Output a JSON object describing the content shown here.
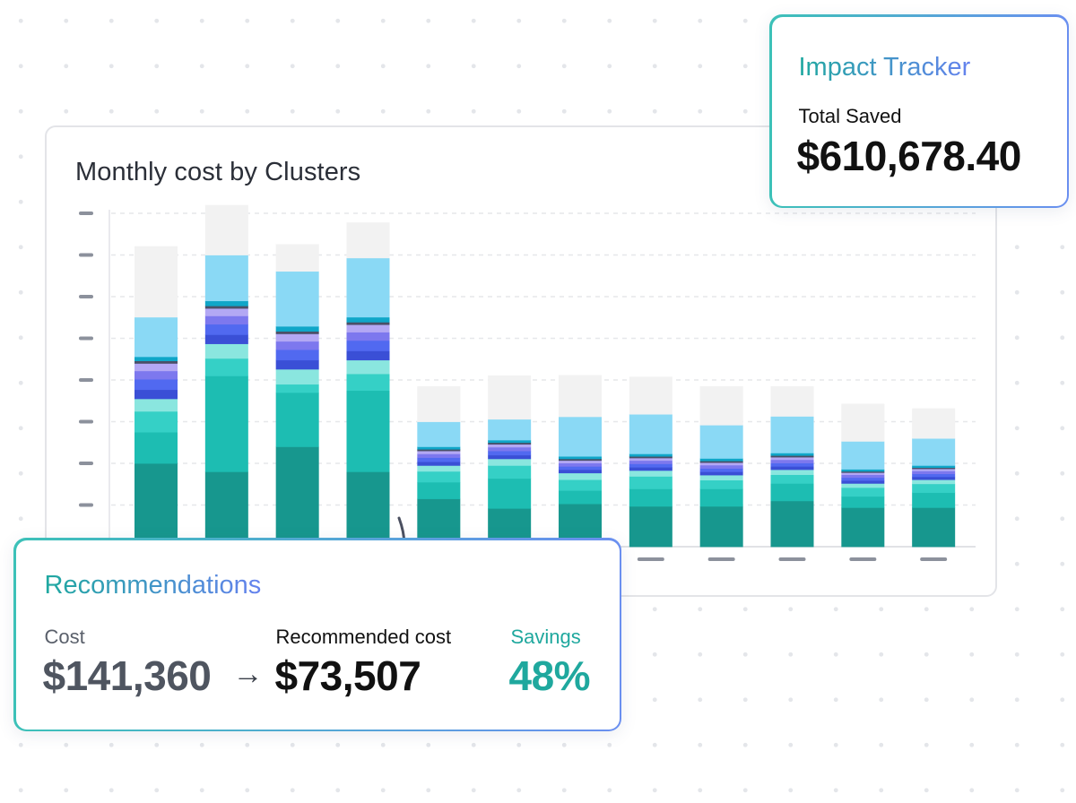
{
  "chart_card": {
    "title": "Monthly cost by Clusters"
  },
  "impact_tracker": {
    "title": "Impact Tracker",
    "label": "Total Saved",
    "value": "$610,678.40"
  },
  "recommendations": {
    "title": "Recommendations",
    "cost_label": "Cost",
    "cost_value": "$141,360",
    "arrow": "→",
    "recommended_label": "Recommended cost",
    "recommended_value": "$73,507",
    "savings_label": "Savings",
    "savings_value": "48%"
  },
  "colors": {
    "teal_dark": "#17978e",
    "teal": "#1dbdb2",
    "teal_light": "#35d0c6",
    "teal_pale": "#8ae6df",
    "blue_dark": "#3a4fd6",
    "blue": "#5169f0",
    "violet": "#7d78ee",
    "lavender": "#b3a8f4",
    "sky": "#8ad9f5",
    "grey": "#f2f2f2",
    "accent_gradient_start": "#3cc1b8",
    "accent_gradient_end": "#6a8ff0"
  },
  "chart_data": {
    "type": "bar",
    "stacked": true,
    "title": "Monthly cost by Clusters",
    "xlabel": "",
    "ylabel": "",
    "grid": true,
    "ylim": [
      0,
      8
    ],
    "categories": [
      "",
      "",
      "",
      "",
      "",
      "",
      "",
      "",
      "",
      "",
      "",
      ""
    ],
    "series": [
      {
        "color": "#17978e",
        "values": [
          2.0,
          1.8,
          2.4,
          1.8,
          1.15,
          0.92,
          1.03,
          0.97,
          0.97,
          1.1,
          0.94,
          0.94
        ]
      },
      {
        "color": "#1dbdb2",
        "values": [
          0.75,
          2.3,
          1.3,
          1.95,
          0.4,
          0.72,
          0.32,
          0.42,
          0.42,
          0.42,
          0.27,
          0.36
        ]
      },
      {
        "color": "#35d0c6",
        "values": [
          0.5,
          0.42,
          0.2,
          0.4,
          0.26,
          0.31,
          0.26,
          0.3,
          0.21,
          0.21,
          0.21,
          0.21
        ]
      },
      {
        "color": "#8ae6df",
        "values": [
          0.3,
          0.35,
          0.36,
          0.33,
          0.14,
          0.16,
          0.16,
          0.14,
          0.12,
          0.12,
          0.1,
          0.1
        ]
      },
      {
        "color": "#3a4fd6",
        "values": [
          0.22,
          0.22,
          0.22,
          0.22,
          0.09,
          0.09,
          0.08,
          0.08,
          0.08,
          0.08,
          0.07,
          0.07
        ]
      },
      {
        "color": "#5169f0",
        "values": [
          0.25,
          0.25,
          0.25,
          0.25,
          0.1,
          0.1,
          0.08,
          0.08,
          0.08,
          0.08,
          0.07,
          0.07
        ]
      },
      {
        "color": "#7d78ee",
        "values": [
          0.2,
          0.2,
          0.2,
          0.2,
          0.09,
          0.09,
          0.08,
          0.08,
          0.08,
          0.08,
          0.07,
          0.07
        ]
      },
      {
        "color": "#b3a8f4",
        "values": [
          0.18,
          0.18,
          0.18,
          0.18,
          0.07,
          0.07,
          0.06,
          0.06,
          0.06,
          0.06,
          0.05,
          0.05
        ]
      },
      {
        "color": "#4a5068",
        "values": [
          0.06,
          0.06,
          0.06,
          0.06,
          0.04,
          0.04,
          0.04,
          0.04,
          0.04,
          0.04,
          0.03,
          0.03
        ]
      },
      {
        "color": "#0fa6c8",
        "values": [
          0.1,
          0.12,
          0.12,
          0.12,
          0.06,
          0.06,
          0.06,
          0.06,
          0.06,
          0.06,
          0.05,
          0.05
        ]
      },
      {
        "color": "#8ad9f5",
        "values": [
          0.95,
          1.1,
          1.32,
          1.42,
          0.6,
          0.5,
          0.95,
          0.95,
          0.8,
          0.88,
          0.67,
          0.65
        ]
      },
      {
        "color": "#f2f2f2",
        "values": [
          1.7,
          1.2,
          0.65,
          0.85,
          0.85,
          1.05,
          1.0,
          0.9,
          0.93,
          0.72,
          0.9,
          0.72
        ]
      }
    ]
  }
}
